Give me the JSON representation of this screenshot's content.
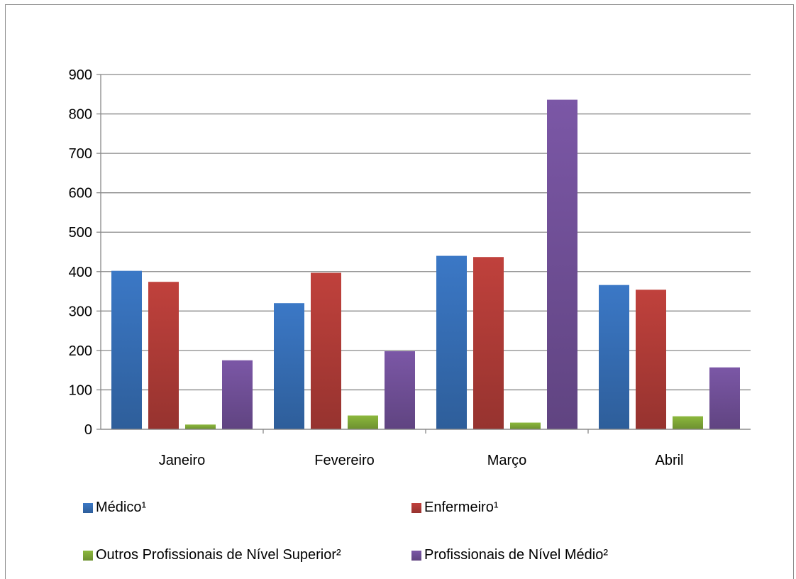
{
  "chart_data": {
    "type": "bar",
    "title": "",
    "xlabel": "",
    "ylabel": "",
    "categories": [
      "Janeiro",
      "Fevereiro",
      "Março",
      "Abril"
    ],
    "ylim": [
      0,
      900
    ],
    "yticks": [
      0,
      100,
      200,
      300,
      400,
      500,
      600,
      700,
      800,
      900
    ],
    "grid": true,
    "legend_position": "bottom",
    "series": [
      {
        "name": "Médico¹",
        "color": "#3b78c6",
        "values": [
          402,
          320,
          440,
          366
        ]
      },
      {
        "name": "Enfermeiro¹",
        "color": "#c0413c",
        "values": [
          374,
          397,
          437,
          354
        ]
      },
      {
        "name": "Outros Profissionais de Nível Superior²",
        "color": "#8cb83d",
        "values": [
          12,
          35,
          17,
          33
        ]
      },
      {
        "name": "Profissionais de Nível Médio²",
        "color": "#7b57a6",
        "values": [
          175,
          198,
          836,
          157
        ]
      }
    ]
  }
}
